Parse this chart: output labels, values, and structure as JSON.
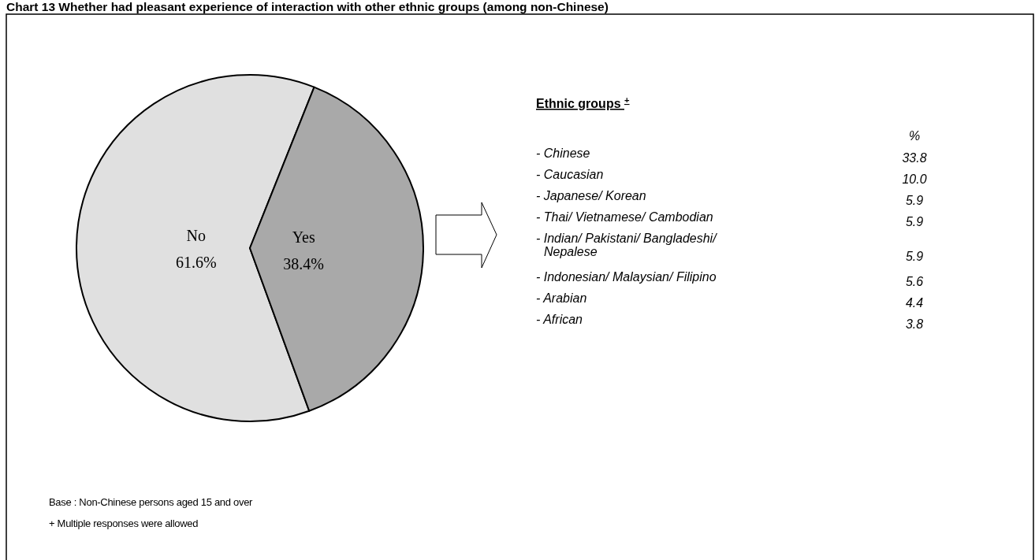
{
  "chart_data": [
    {
      "type": "pie",
      "title": "Chart 13     Whether had pleasant experience of interaction with other ethnic groups (among non-Chinese)",
      "categories": [
        "No",
        "Yes"
      ],
      "values": [
        61.6,
        38.4
      ],
      "colors": [
        "#e0e0e0",
        "#a9a9a9"
      ],
      "value_labels": [
        "61.6%",
        "38.4%"
      ],
      "annotations": [
        "Base : Non-Chinese persons aged 15 and over",
        "+ Multiple responses were allowed"
      ]
    },
    {
      "type": "other",
      "title": "Ethnic groups $^{+}$",
      "ylabel": "%",
      "categories": [
        "- Chinese",
        "- Caucasian",
        "- Japanese/ Korean",
        "- Thai/ Vietnamese/ Cambodian",
        "- Indian/ Pakistani/ Bangladeshi/ Nepalese",
        "- Indonesian/ Malaysian/ Filipino",
        "- Arabian",
        "- African"
      ],
      "value_labels": [
        "33.8",
        "10.0",
        "5.9",
        "5.9",
        "5.9",
        "5.6",
        "4.4",
        "3.8"
      ]
    }
  ]
}
